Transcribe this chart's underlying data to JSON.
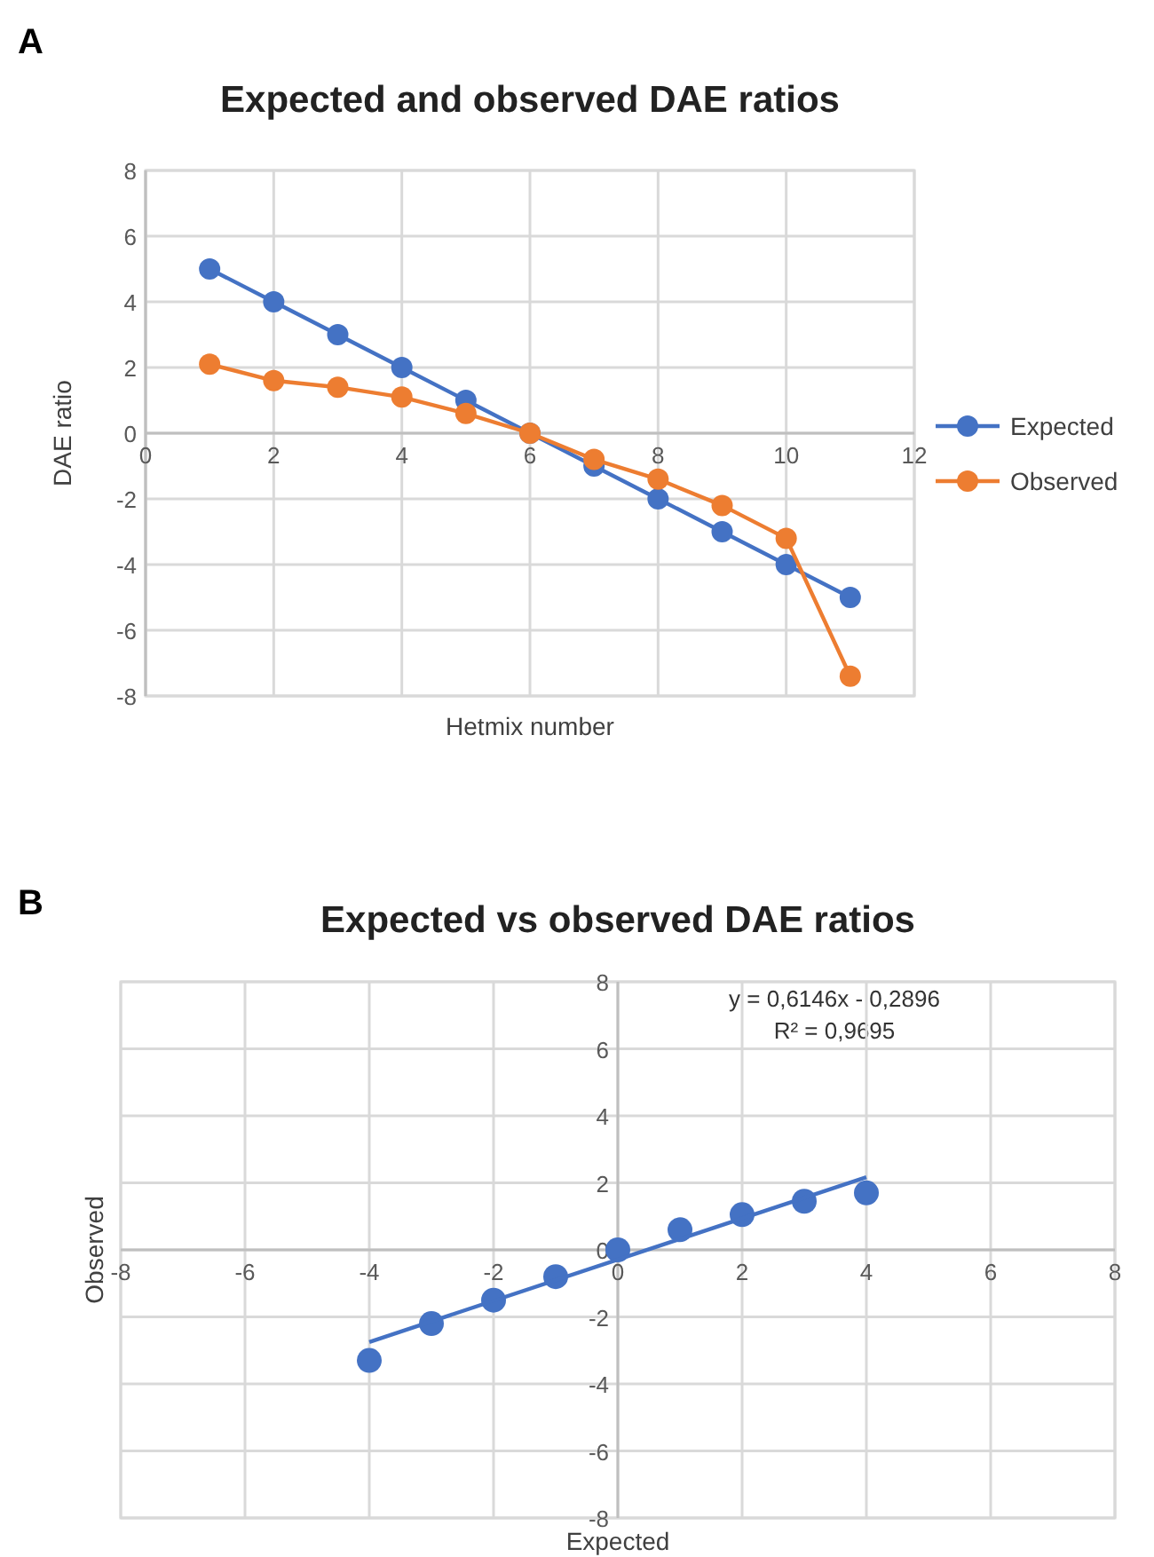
{
  "chart_data": [
    {
      "type": "line",
      "title": "Expected and observed DAE ratios",
      "xlabel": "Hetmix number",
      "ylabel": "DAE ratio",
      "annotations": [
        "A"
      ],
      "x": [
        1,
        2,
        3,
        4,
        5,
        6,
        7,
        8,
        9,
        10,
        11
      ],
      "series": [
        {
          "name": "Expected",
          "color": "#4472c4",
          "values": [
            5,
            4,
            3,
            2,
            1,
            0,
            -1,
            -2,
            -3,
            -4,
            -5
          ]
        },
        {
          "name": "Observed",
          "color": "#ed7d31",
          "values": [
            2.1,
            1.6,
            1.4,
            1.1,
            0.6,
            0,
            -0.8,
            -1.4,
            -2.2,
            -3.2,
            -7.4
          ]
        }
      ],
      "xlim": [
        0,
        12
      ],
      "xticks": [
        0,
        2,
        4,
        6,
        8,
        10,
        12
      ],
      "ylim": [
        -8,
        8
      ],
      "yticks": [
        -8,
        -6,
        -4,
        -2,
        0,
        2,
        4,
        6,
        8
      ],
      "grid": true,
      "legend": "right",
      "marker": "circle",
      "line_style": "solid"
    },
    {
      "type": "scatter",
      "title": "Expected vs observed DAE ratios",
      "xlabel": "Expected",
      "ylabel": "Observed",
      "annotations": [
        "B",
        "y = 0,6146x - 0,2896",
        "R² = 0,9695"
      ],
      "series": [
        {
          "color": "#4472c4",
          "marker": "circle",
          "x": [
            -4,
            -3,
            -2,
            -1,
            0,
            1,
            2,
            3,
            4
          ],
          "values": [
            -3.3,
            -2.2,
            -1.5,
            -0.8,
            0,
            0.6,
            1.05,
            1.45,
            1.7
          ]
        },
        {
          "type": "line",
          "color": "#4472c4",
          "marker": "none",
          "x": [
            -4,
            4
          ],
          "values": [
            -2.75,
            2.17
          ]
        }
      ],
      "xlim": [
        -8,
        8
      ],
      "xticks": [
        -8,
        -6,
        -4,
        -2,
        0,
        2,
        4,
        6,
        8
      ],
      "ylim": [
        -8,
        8
      ],
      "yticks": [
        -8,
        -6,
        -4,
        -2,
        0,
        2,
        4,
        6,
        8
      ],
      "grid": true
    }
  ]
}
